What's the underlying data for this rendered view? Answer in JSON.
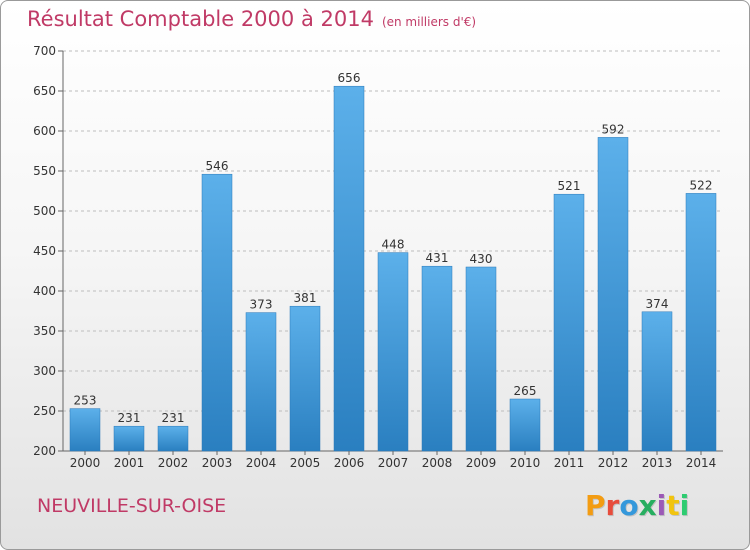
{
  "title": "Résultat Comptable 2000 à 2014",
  "subtitle": "(en milliers d'€)",
  "commune": "NEUVILLE-SUR-OISE",
  "logo": {
    "letters": [
      "P",
      "r",
      "o",
      "x",
      "i",
      "t",
      "i"
    ],
    "colors": [
      "#f39c12",
      "#e74c3c",
      "#3498db",
      "#27ae60",
      "#9b59b6",
      "#f1c40f",
      "#2ecc71"
    ]
  },
  "colors": {
    "bar_top": "#5cb0ea",
    "bar_bottom": "#2a7fc0",
    "title": "#c03a66",
    "grid": "#bdbdbd"
  },
  "chart_data": {
    "type": "bar",
    "categories": [
      "2000",
      "2001",
      "2002",
      "2003",
      "2004",
      "2005",
      "2006",
      "2007",
      "2008",
      "2009",
      "2010",
      "2011",
      "2012",
      "2013",
      "2014"
    ],
    "values": [
      253,
      231,
      231,
      546,
      373,
      381,
      656,
      448,
      431,
      430,
      265,
      521,
      592,
      374,
      522
    ],
    "ylim": [
      200,
      700
    ],
    "yticks": [
      200,
      250,
      300,
      350,
      400,
      450,
      500,
      550,
      600,
      650,
      700
    ],
    "grid": true,
    "data_labels": true
  }
}
